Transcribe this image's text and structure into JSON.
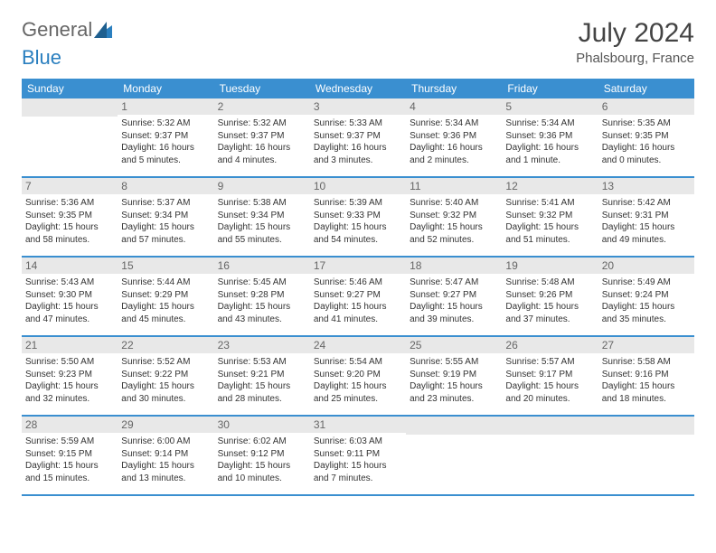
{
  "brand": {
    "part1": "General",
    "part2": "Blue"
  },
  "title": "July 2024",
  "location": "Phalsbourg, France",
  "colors": {
    "header_bg": "#3a8fd0",
    "daynum_bg": "#e8e8e8",
    "accent": "#2a7fbf"
  },
  "day_headers": [
    "Sunday",
    "Monday",
    "Tuesday",
    "Wednesday",
    "Thursday",
    "Friday",
    "Saturday"
  ],
  "weeks": [
    [
      {
        "n": "",
        "lines": []
      },
      {
        "n": "1",
        "lines": [
          "Sunrise: 5:32 AM",
          "Sunset: 9:37 PM",
          "Daylight: 16 hours and 5 minutes."
        ]
      },
      {
        "n": "2",
        "lines": [
          "Sunrise: 5:32 AM",
          "Sunset: 9:37 PM",
          "Daylight: 16 hours and 4 minutes."
        ]
      },
      {
        "n": "3",
        "lines": [
          "Sunrise: 5:33 AM",
          "Sunset: 9:37 PM",
          "Daylight: 16 hours and 3 minutes."
        ]
      },
      {
        "n": "4",
        "lines": [
          "Sunrise: 5:34 AM",
          "Sunset: 9:36 PM",
          "Daylight: 16 hours and 2 minutes."
        ]
      },
      {
        "n": "5",
        "lines": [
          "Sunrise: 5:34 AM",
          "Sunset: 9:36 PM",
          "Daylight: 16 hours and 1 minute."
        ]
      },
      {
        "n": "6",
        "lines": [
          "Sunrise: 5:35 AM",
          "Sunset: 9:35 PM",
          "Daylight: 16 hours and 0 minutes."
        ]
      }
    ],
    [
      {
        "n": "7",
        "lines": [
          "Sunrise: 5:36 AM",
          "Sunset: 9:35 PM",
          "Daylight: 15 hours and 58 minutes."
        ]
      },
      {
        "n": "8",
        "lines": [
          "Sunrise: 5:37 AM",
          "Sunset: 9:34 PM",
          "Daylight: 15 hours and 57 minutes."
        ]
      },
      {
        "n": "9",
        "lines": [
          "Sunrise: 5:38 AM",
          "Sunset: 9:34 PM",
          "Daylight: 15 hours and 55 minutes."
        ]
      },
      {
        "n": "10",
        "lines": [
          "Sunrise: 5:39 AM",
          "Sunset: 9:33 PM",
          "Daylight: 15 hours and 54 minutes."
        ]
      },
      {
        "n": "11",
        "lines": [
          "Sunrise: 5:40 AM",
          "Sunset: 9:32 PM",
          "Daylight: 15 hours and 52 minutes."
        ]
      },
      {
        "n": "12",
        "lines": [
          "Sunrise: 5:41 AM",
          "Sunset: 9:32 PM",
          "Daylight: 15 hours and 51 minutes."
        ]
      },
      {
        "n": "13",
        "lines": [
          "Sunrise: 5:42 AM",
          "Sunset: 9:31 PM",
          "Daylight: 15 hours and 49 minutes."
        ]
      }
    ],
    [
      {
        "n": "14",
        "lines": [
          "Sunrise: 5:43 AM",
          "Sunset: 9:30 PM",
          "Daylight: 15 hours and 47 minutes."
        ]
      },
      {
        "n": "15",
        "lines": [
          "Sunrise: 5:44 AM",
          "Sunset: 9:29 PM",
          "Daylight: 15 hours and 45 minutes."
        ]
      },
      {
        "n": "16",
        "lines": [
          "Sunrise: 5:45 AM",
          "Sunset: 9:28 PM",
          "Daylight: 15 hours and 43 minutes."
        ]
      },
      {
        "n": "17",
        "lines": [
          "Sunrise: 5:46 AM",
          "Sunset: 9:27 PM",
          "Daylight: 15 hours and 41 minutes."
        ]
      },
      {
        "n": "18",
        "lines": [
          "Sunrise: 5:47 AM",
          "Sunset: 9:27 PM",
          "Daylight: 15 hours and 39 minutes."
        ]
      },
      {
        "n": "19",
        "lines": [
          "Sunrise: 5:48 AM",
          "Sunset: 9:26 PM",
          "Daylight: 15 hours and 37 minutes."
        ]
      },
      {
        "n": "20",
        "lines": [
          "Sunrise: 5:49 AM",
          "Sunset: 9:24 PM",
          "Daylight: 15 hours and 35 minutes."
        ]
      }
    ],
    [
      {
        "n": "21",
        "lines": [
          "Sunrise: 5:50 AM",
          "Sunset: 9:23 PM",
          "Daylight: 15 hours and 32 minutes."
        ]
      },
      {
        "n": "22",
        "lines": [
          "Sunrise: 5:52 AM",
          "Sunset: 9:22 PM",
          "Daylight: 15 hours and 30 minutes."
        ]
      },
      {
        "n": "23",
        "lines": [
          "Sunrise: 5:53 AM",
          "Sunset: 9:21 PM",
          "Daylight: 15 hours and 28 minutes."
        ]
      },
      {
        "n": "24",
        "lines": [
          "Sunrise: 5:54 AM",
          "Sunset: 9:20 PM",
          "Daylight: 15 hours and 25 minutes."
        ]
      },
      {
        "n": "25",
        "lines": [
          "Sunrise: 5:55 AM",
          "Sunset: 9:19 PM",
          "Daylight: 15 hours and 23 minutes."
        ]
      },
      {
        "n": "26",
        "lines": [
          "Sunrise: 5:57 AM",
          "Sunset: 9:17 PM",
          "Daylight: 15 hours and 20 minutes."
        ]
      },
      {
        "n": "27",
        "lines": [
          "Sunrise: 5:58 AM",
          "Sunset: 9:16 PM",
          "Daylight: 15 hours and 18 minutes."
        ]
      }
    ],
    [
      {
        "n": "28",
        "lines": [
          "Sunrise: 5:59 AM",
          "Sunset: 9:15 PM",
          "Daylight: 15 hours and 15 minutes."
        ]
      },
      {
        "n": "29",
        "lines": [
          "Sunrise: 6:00 AM",
          "Sunset: 9:14 PM",
          "Daylight: 15 hours and 13 minutes."
        ]
      },
      {
        "n": "30",
        "lines": [
          "Sunrise: 6:02 AM",
          "Sunset: 9:12 PM",
          "Daylight: 15 hours and 10 minutes."
        ]
      },
      {
        "n": "31",
        "lines": [
          "Sunrise: 6:03 AM",
          "Sunset: 9:11 PM",
          "Daylight: 15 hours and 7 minutes."
        ]
      },
      {
        "n": "",
        "lines": []
      },
      {
        "n": "",
        "lines": []
      },
      {
        "n": "",
        "lines": []
      }
    ]
  ]
}
